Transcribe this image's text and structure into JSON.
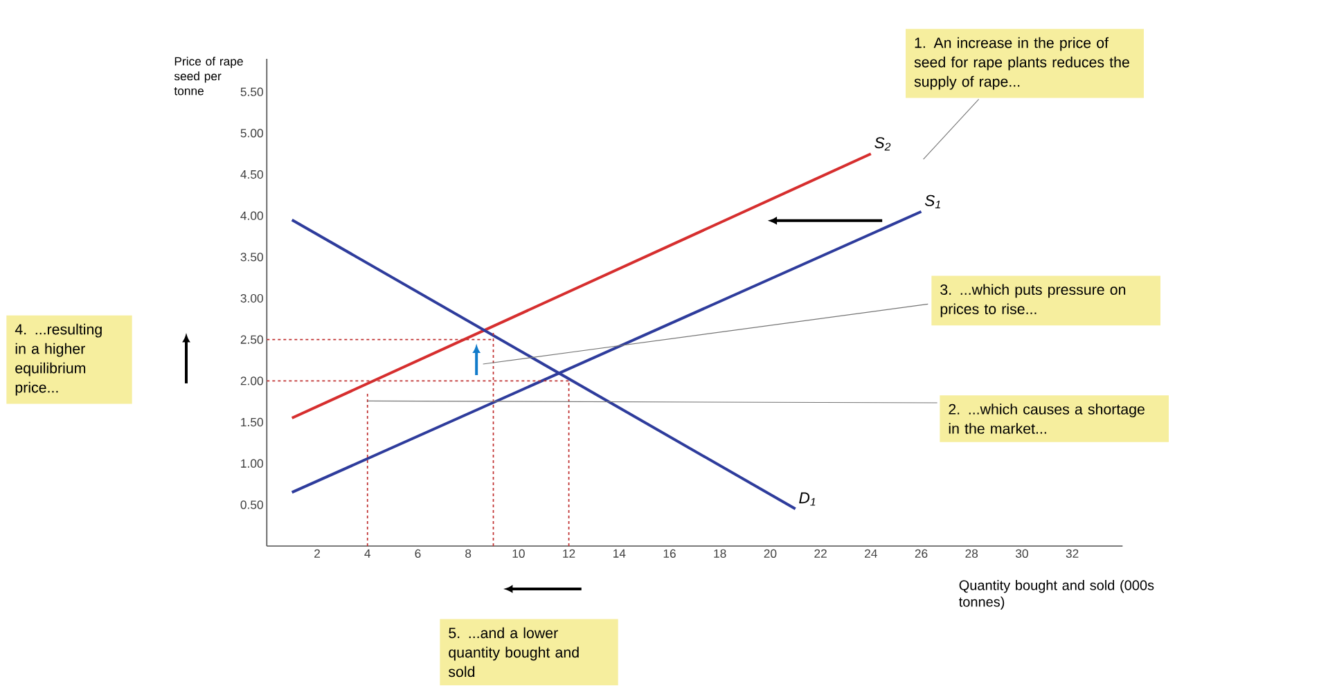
{
  "chart_data": {
    "type": "line",
    "xlabel": "Quantity bought and sold (000s tonnes)",
    "ylabel": "Price of rape seed per tonne",
    "xlim": [
      0,
      34
    ],
    "ylim": [
      0,
      5.9
    ],
    "xticks": [
      2,
      4,
      6,
      8,
      10,
      12,
      14,
      16,
      18,
      20,
      22,
      24,
      26,
      28,
      30,
      32
    ],
    "yticks": [
      {
        "value": 0.5,
        "label": "0.50"
      },
      {
        "value": 1,
        "label": "1.00"
      },
      {
        "value": 1.5,
        "label": "1.50"
      },
      {
        "value": 2,
        "label": "2.00"
      },
      {
        "value": 2.5,
        "label": "2.50"
      },
      {
        "value": 3,
        "label": "3.00"
      },
      {
        "value": 3.5,
        "label": "3.50"
      },
      {
        "value": 4,
        "label": "4.00"
      },
      {
        "value": 4.5,
        "label": "4.50"
      },
      {
        "value": 5,
        "label": "5.00"
      },
      {
        "value": 5.5,
        "label": "5.50"
      }
    ],
    "series": [
      {
        "name": "S$_{2}$",
        "color": "#d62e2e",
        "x": [
          1,
          24
        ],
        "values": [
          1.55,
          4.75
        ]
      },
      {
        "name": "S$_{1}$",
        "color": "#2e3c9c",
        "x": [
          1,
          26
        ],
        "values": [
          0.65,
          4.05
        ]
      },
      {
        "name": "D$_{1}$",
        "color": "#2e3c9c",
        "x": [
          1,
          21
        ],
        "values": [
          3.95,
          0.45
        ]
      },
      {
        "color": "#c03030",
        "line_style": "dashed",
        "x": [
          0,
          9
        ],
        "values": [
          2.5,
          2.5
        ]
      },
      {
        "color": "#c03030",
        "line_style": "dashed",
        "x": [
          0,
          12
        ],
        "values": [
          2,
          2
        ]
      },
      {
        "color": "#c03030",
        "line_style": "dashed",
        "x": [
          4,
          4
        ],
        "values": [
          0,
          1.85
        ]
      },
      {
        "color": "#c03030",
        "line_style": "dashed",
        "x": [
          9,
          9
        ],
        "values": [
          0,
          2.6
        ]
      },
      {
        "color": "#c03030",
        "line_style": "dashed",
        "x": [
          12,
          12
        ],
        "values": [
          0,
          2.0
        ]
      }
    ],
    "annotations": [
      "1. An increase in the price of seed for rape plants reduces the supply of rape...",
      "2. ...which causes a shortage in the market...",
      "3. ...which puts pressure on prices to rise...",
      "4. ...resulting in a higher equilibrium price...",
      "5. ...and a lower quantity bought and sold"
    ]
  }
}
